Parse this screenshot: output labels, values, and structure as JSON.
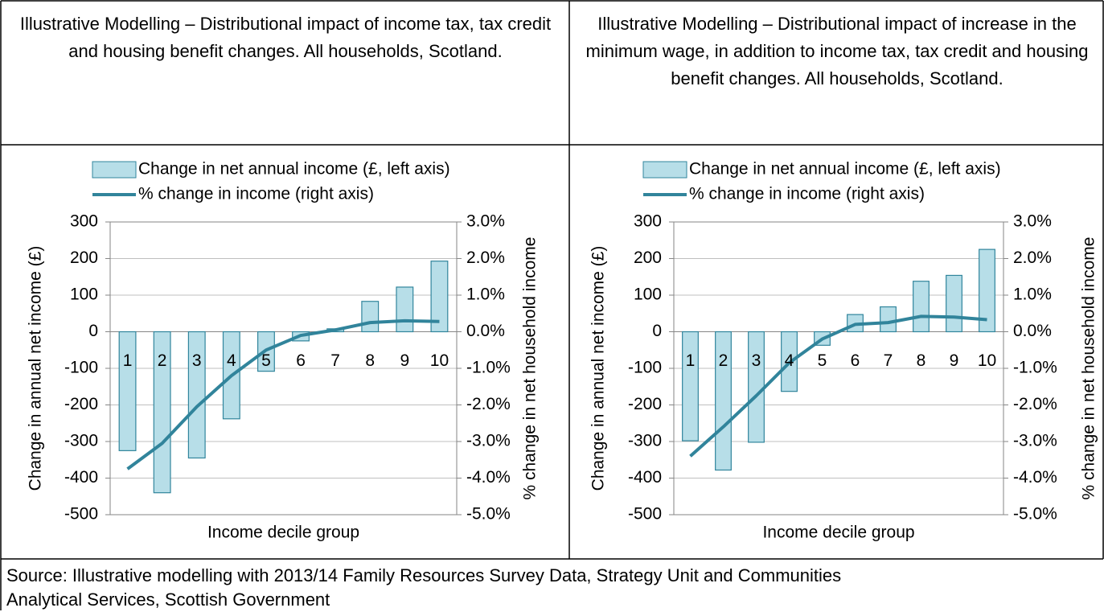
{
  "headers": [
    "Illustrative Modelling – Distributional impact of income tax, tax credit and housing benefit changes. All households, Scotland.",
    "Illustrative Modelling – Distributional impact of increase in the minimum wage, in addition to income tax, tax credit and housing benefit changes. All households, Scotland."
  ],
  "source": "Source: Illustrative modelling with 2013/14 Family Resources Survey Data, Strategy Unit and Communities Analytical Services, Scottish Government",
  "chart_data": [
    {
      "type": "combo",
      "xlabel": "Income decile group",
      "ylabel": "Change in annual net income (£)",
      "y2label": "% change in net household income",
      "categories": [
        "1",
        "2",
        "3",
        "4",
        "5",
        "6",
        "7",
        "8",
        "9",
        "10"
      ],
      "series": [
        {
          "name": "Change in net annual income (£, left axis)",
          "type": "bar",
          "color": "#b7dee8",
          "values": [
            -325,
            -440,
            -345,
            -238,
            -108,
            -25,
            8,
            83,
            122,
            193
          ]
        },
        {
          "name": "% change in income (right axis)",
          "type": "line",
          "axis": "y2",
          "color": "#31849b",
          "values": [
            -3.75,
            -3.05,
            -2.05,
            -1.2,
            -0.5,
            -0.1,
            0.05,
            0.25,
            0.3,
            0.28
          ]
        }
      ],
      "ylim": [
        -500,
        300
      ],
      "yticks": [
        -500,
        -400,
        -300,
        -200,
        -100,
        0,
        100,
        200,
        300
      ],
      "y2lim": [
        -5,
        3
      ],
      "y2ticks": [
        {
          "value": -5,
          "label": "-5.0%"
        },
        {
          "value": -4,
          "label": "-4.0%"
        },
        {
          "value": -3,
          "label": "-3.0%"
        },
        {
          "value": -2,
          "label": "-2.0%"
        },
        {
          "value": -1,
          "label": "-1.0%"
        },
        {
          "value": 0,
          "label": "0.0%"
        },
        {
          "value": 1,
          "label": "1.0%"
        },
        {
          "value": 2,
          "label": "2.0%"
        },
        {
          "value": 3,
          "label": "3.0%"
        }
      ],
      "grid": true,
      "legend": "top"
    },
    {
      "type": "combo",
      "xlabel": "Income decile group",
      "ylabel": "Change in annual net income (£)",
      "y2label": "% change in net household income",
      "categories": [
        "1",
        "2",
        "3",
        "4",
        "5",
        "6",
        "7",
        "8",
        "9",
        "10"
      ],
      "series": [
        {
          "name": "Change in net annual income (£, left axis)",
          "type": "bar",
          "color": "#b7dee8",
          "values": [
            -298,
            -378,
            -302,
            -163,
            -37,
            47,
            68,
            138,
            154,
            225
          ]
        },
        {
          "name": "% change in income (right axis)",
          "type": "line",
          "axis": "y2",
          "color": "#31849b",
          "values": [
            -3.4,
            -2.6,
            -1.75,
            -0.85,
            -0.2,
            0.2,
            0.25,
            0.42,
            0.4,
            0.33
          ]
        }
      ],
      "ylim": [
        -500,
        300
      ],
      "yticks": [
        -500,
        -400,
        -300,
        -200,
        -100,
        0,
        100,
        200,
        300
      ],
      "y2lim": [
        -5,
        3
      ],
      "y2ticks": [
        {
          "value": -5,
          "label": "-5.0%"
        },
        {
          "value": -4,
          "label": "-4.0%"
        },
        {
          "value": -3,
          "label": "-3.0%"
        },
        {
          "value": -2,
          "label": "-2.0%"
        },
        {
          "value": -1,
          "label": "-1.0%"
        },
        {
          "value": 0,
          "label": "0.0%"
        },
        {
          "value": 1,
          "label": "1.0%"
        },
        {
          "value": 2,
          "label": "2.0%"
        },
        {
          "value": 3,
          "label": "3.0%"
        }
      ],
      "grid": true,
      "legend": "top"
    }
  ]
}
